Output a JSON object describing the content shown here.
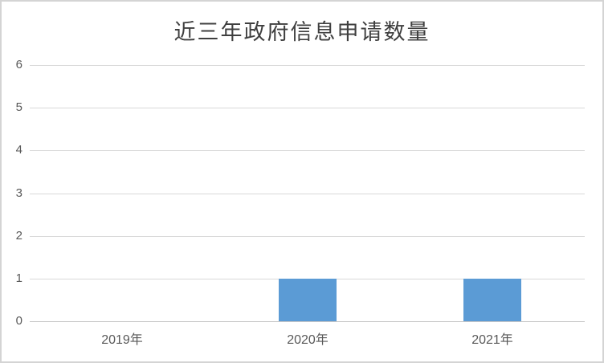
{
  "chart_data": {
    "type": "bar",
    "title": "近三年政府信息申请数量",
    "categories": [
      "2019年",
      "2020年",
      "2021年"
    ],
    "values": [
      0,
      1,
      1
    ],
    "xlabel": "",
    "ylabel": "",
    "ylim": [
      0,
      6
    ],
    "yticks": [
      0,
      1,
      2,
      3,
      4,
      5,
      6
    ],
    "grid": true,
    "legend_position": "none",
    "bar_color": "#5b9bd5",
    "gridline_color": "#d9d9d9",
    "axis_line_color": "#c6c6c6",
    "tick_label_color": "#595959",
    "title_color": "#3f3f3f",
    "frame_border_color": "#d4d4d4",
    "background_color": "#ffffff"
  }
}
